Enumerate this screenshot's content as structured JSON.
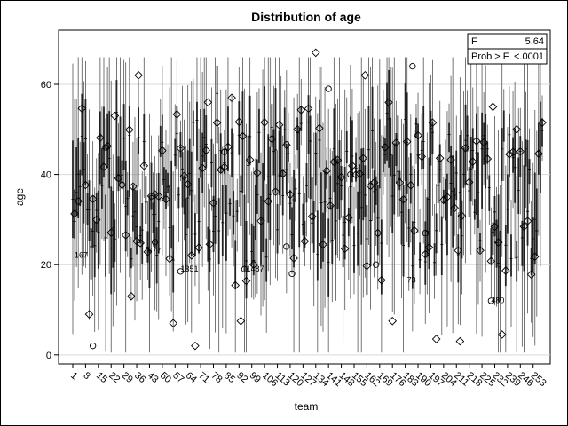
{
  "chart_data": {
    "type": "box",
    "title": "Distribution of age",
    "xlabel": "team",
    "ylabel": "age",
    "ylim": [
      -2,
      72
    ],
    "y_ticks": [
      0,
      20,
      40,
      60
    ],
    "x_tick_labels": [
      "1",
      "8",
      "15",
      "22",
      "29",
      "36",
      "43",
      "50",
      "57",
      "64",
      "71",
      "78",
      "85",
      "92",
      "99",
      "106",
      "113",
      "120",
      "127",
      "134",
      "141",
      "148",
      "155",
      "162",
      "169",
      "176",
      "183",
      "190",
      "197",
      "204",
      "211",
      "218",
      "225",
      "232",
      "239",
      "246",
      "253"
    ],
    "x_range": [
      1,
      258
    ],
    "grid": {
      "horizontal": true,
      "vertical": false
    },
    "stats_box": {
      "placement": "top-right",
      "rows": [
        {
          "label": "F",
          "value": "5.64"
        },
        {
          "label": "Prob > F",
          "value": "<.0001"
        }
      ]
    },
    "annotations": [
      {
        "text": "167",
        "x": 2,
        "y": 21.5
      },
      {
        "text": "677",
        "x": 42,
        "y": 22.5
      },
      {
        "text": "1351",
        "x": 60,
        "y": 18.5
      },
      {
        "text": "1487",
        "x": 96,
        "y": 18.5
      },
      {
        "text": "73",
        "x": 184,
        "y": 16
      },
      {
        "text": "480",
        "x": 230,
        "y": 11.5
      }
    ],
    "outliers": [
      {
        "x": 12,
        "y": 2
      },
      {
        "x": 19,
        "y": 46
      },
      {
        "x": 46,
        "y": 25
      },
      {
        "x": 60,
        "y": 18.5
      },
      {
        "x": 84,
        "y": 45
      },
      {
        "x": 95,
        "y": 19
      },
      {
        "x": 141,
        "y": 59
      },
      {
        "x": 153,
        "y": 40
      },
      {
        "x": 167,
        "y": 20
      },
      {
        "x": 187,
        "y": 64
      },
      {
        "x": 194,
        "y": 27
      },
      {
        "x": 230,
        "y": 12
      },
      {
        "x": 121,
        "y": 18
      },
      {
        "x": 118,
        "y": 24
      }
    ],
    "notable_means": [
      {
        "x": 37,
        "y": 62
      },
      {
        "x": 134,
        "y": 67
      },
      {
        "x": 161,
        "y": 62
      },
      {
        "x": 24,
        "y": 53
      },
      {
        "x": 75,
        "y": 56
      },
      {
        "x": 88,
        "y": 57
      },
      {
        "x": 114,
        "y": 51
      },
      {
        "x": 231,
        "y": 55
      },
      {
        "x": 244,
        "y": 50
      },
      {
        "x": 10,
        "y": 9
      },
      {
        "x": 33,
        "y": 13
      },
      {
        "x": 56,
        "y": 7
      },
      {
        "x": 68,
        "y": 2
      },
      {
        "x": 213,
        "y": 3
      },
      {
        "x": 236,
        "y": 4.5
      },
      {
        "x": 200,
        "y": 3.5
      },
      {
        "x": 176,
        "y": 7.5
      },
      {
        "x": 93,
        "y": 7.5
      }
    ]
  }
}
